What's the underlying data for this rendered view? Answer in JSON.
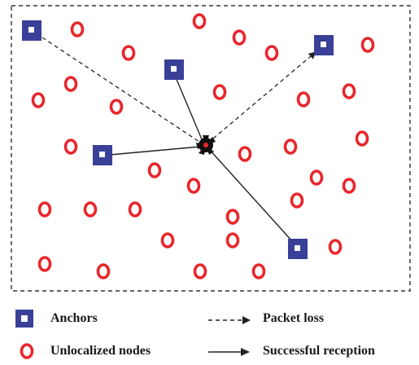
{
  "legend": {
    "anchors_label": "Anchors",
    "unlocalized_label": "Unlocalized nodes",
    "packet_loss_label": "Packet loss",
    "success_label": "Successful reception"
  },
  "colors": {
    "anchor_fill": "#3a3f97",
    "node_ring": "#e8262b",
    "line": "#222222",
    "border": "#333333",
    "background": "#ffffff"
  },
  "links": [
    {
      "from": "anchor-1",
      "type": "packet-loss"
    },
    {
      "from": "anchor-2",
      "type": "successful-reception"
    },
    {
      "from": "anchor-3",
      "type": "packet-loss"
    },
    {
      "from": "anchor-4",
      "type": "successful-reception"
    },
    {
      "from": "anchor-5",
      "type": "successful-reception"
    }
  ]
}
